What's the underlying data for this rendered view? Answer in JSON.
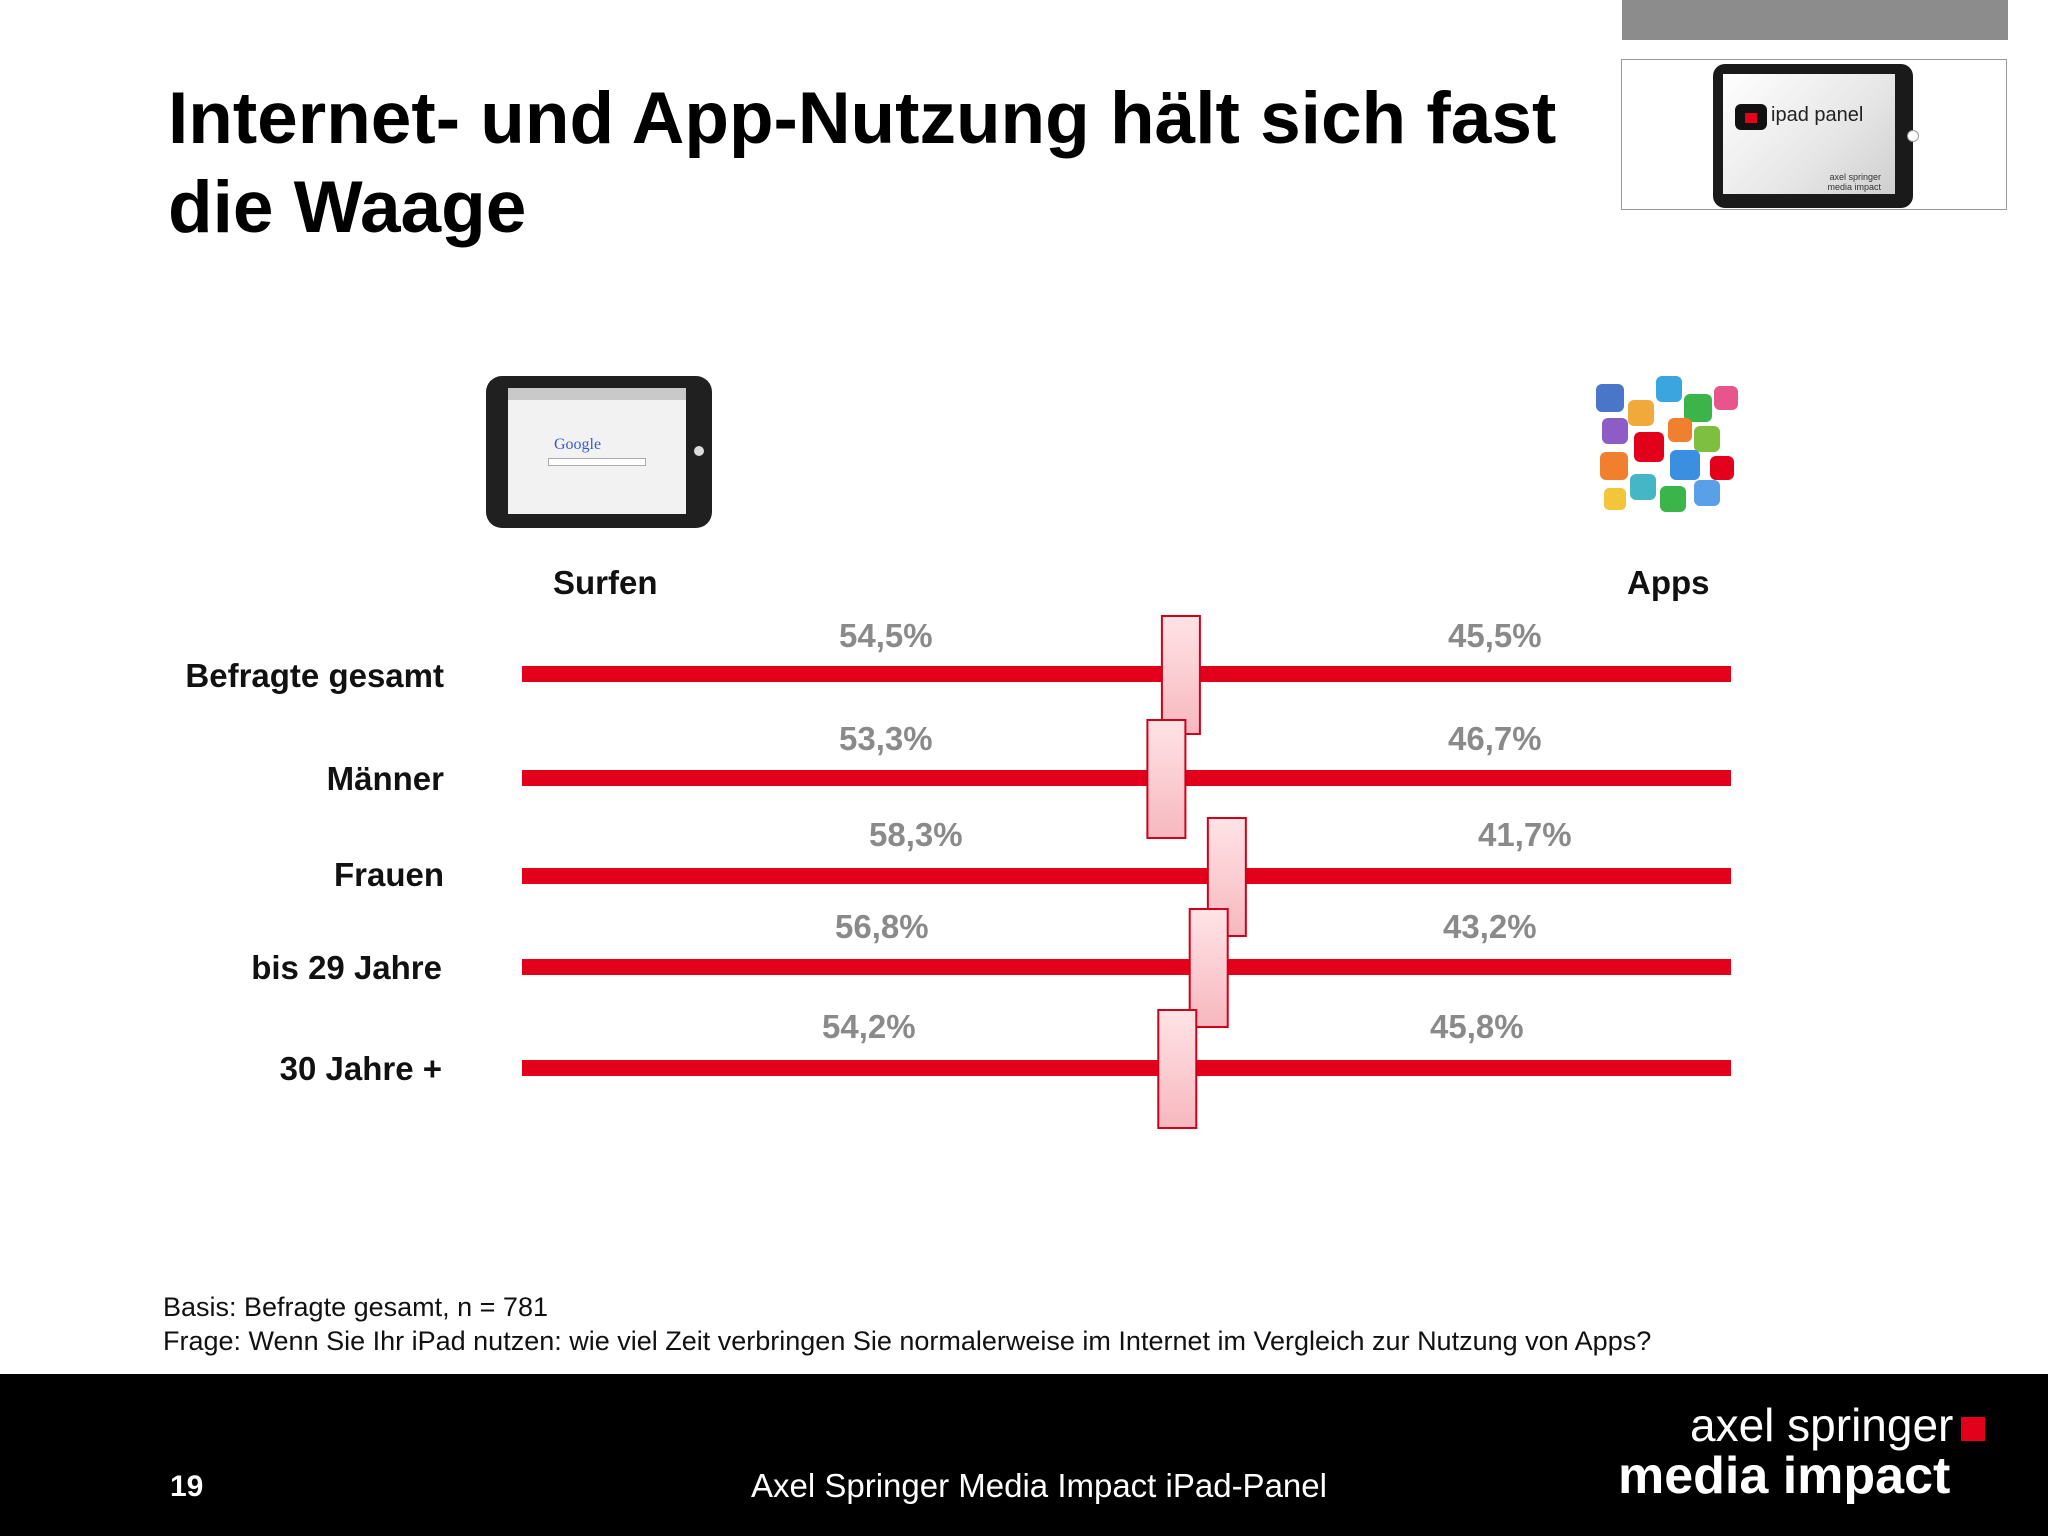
{
  "title": "Internet- und App-Nutzung hält sich fast die Waage",
  "logo": {
    "text": "ipad panel",
    "sub_line1": "axel springer",
    "sub_line2": "media impact"
  },
  "icons": {
    "left": "tablet-browser-icon",
    "right": "app-icons-cluster"
  },
  "chart_data": {
    "type": "bar",
    "subtype": "diverging-balance",
    "left_label": "Surfen",
    "right_label": "Apps",
    "categories": [
      "Befragte gesamt",
      "Männer",
      "Frauen",
      "bis 29 Jahre",
      "30 Jahre +"
    ],
    "series": [
      {
        "name": "Surfen",
        "values": [
          54.5,
          53.3,
          58.3,
          56.8,
          54.2
        ],
        "labels": [
          "54,5%",
          "53,3%",
          "58,3%",
          "56,8%",
          "54,2%"
        ]
      },
      {
        "name": "Apps",
        "values": [
          45.5,
          46.7,
          41.7,
          43.2,
          45.8
        ],
        "labels": [
          "45,5%",
          "46,7%",
          "41,7%",
          "43,2%",
          "45,8%"
        ]
      }
    ],
    "ylim": [
      0,
      100
    ],
    "bar_color": "#e2001a",
    "marker_color": "#f6b8be"
  },
  "notes": {
    "basis": "Basis: Befragte gesamt, n = 781",
    "question": "Frage: Wenn Sie Ihr iPad nutzen: wie viel Zeit verbringen Sie normalerweise im Internet im Vergleich zur Nutzung von Apps?"
  },
  "footer": {
    "page_number": "19",
    "title": "Axel Springer Media Impact iPad-Panel",
    "brand_line1": "axel springer",
    "brand_line2": "media impact"
  },
  "colors": {
    "accent": "#e2001a",
    "footer_bg": "#000000",
    "topbar": "#8c8c8c",
    "value_text": "#8a8a8a"
  }
}
